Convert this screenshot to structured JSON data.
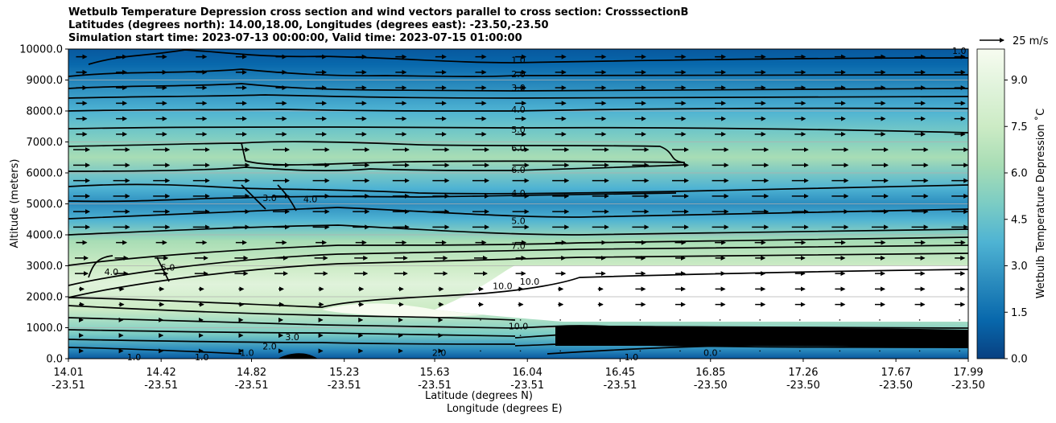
{
  "title": {
    "line1": "Wetbulb Temperature Depression cross section and wind vectors parallel to cross section: CrosssectionB",
    "line2": "Latitudes (degrees north): 14.00,18.00, Longitudes (degrees east): -23.50,-23.50",
    "line3": "Simulation start time: 2023-07-13 00:00:00, Valid time: 2023-07-15 01:00:00"
  },
  "chart_data": {
    "type": "heatmap",
    "subtype": "filled contour cross-section with contour lines and wind vectors",
    "title": "Wetbulb Temperature Depression cross section and wind vectors parallel to cross section: CrosssectionB",
    "ylabel": "Altitude (meters)",
    "xlabel": "Latitude (degrees N)",
    "xlabel2": "Longitude (degrees E)",
    "ylim": [
      0,
      10000
    ],
    "xlim": [
      14.01,
      17.99
    ],
    "grid": "horizontal",
    "y_ticks": [
      "0.0",
      "1000.0",
      "2000.0",
      "3000.0",
      "4000.0",
      "5000.0",
      "6000.0",
      "7000.0",
      "8000.0",
      "9000.0",
      "10000.0"
    ],
    "x_ticks": [
      {
        "lat": "14.01",
        "lon": "-23.51"
      },
      {
        "lat": "14.42",
        "lon": "-23.51"
      },
      {
        "lat": "14.82",
        "lon": "-23.51"
      },
      {
        "lat": "15.23",
        "lon": "-23.51"
      },
      {
        "lat": "15.63",
        "lon": "-23.51"
      },
      {
        "lat": "16.04",
        "lon": "-23.51"
      },
      {
        "lat": "16.45",
        "lon": "-23.51"
      },
      {
        "lat": "16.85",
        "lon": "-23.50"
      },
      {
        "lat": "17.26",
        "lon": "-23.50"
      },
      {
        "lat": "17.67",
        "lon": "-23.50"
      },
      {
        "lat": "17.99",
        "lon": "-23.50"
      }
    ],
    "colorbar": {
      "label": "Wetbulb Temperature Depression $^\\circ$C",
      "label_display": "Wetbulb Temperature Depression ˚C",
      "range": [
        0,
        10
      ],
      "ticks": [
        "0.0",
        "1.5",
        "3.0",
        "4.5",
        "6.0",
        "7.5",
        "9.0"
      ],
      "colors": [
        "#08589e",
        "#0868ac",
        "#2b8cbe",
        "#4eb3d3",
        "#7bccc4",
        "#a8ddb5",
        "#ccebc5",
        "#e0f3db",
        "#f7fcf0"
      ]
    },
    "quiver_key": {
      "label": "25 m/s",
      "speed": 25
    },
    "contour_labels": [
      {
        "text": "1.0",
        "lat": 16.0,
        "alt": 9650
      },
      {
        "text": "2.0",
        "lat": 16.0,
        "alt": 9200
      },
      {
        "text": "3.0",
        "lat": 16.0,
        "alt": 8750
      },
      {
        "text": "4.0",
        "lat": 16.0,
        "alt": 8050
      },
      {
        "text": "5.0",
        "lat": 16.0,
        "alt": 7400
      },
      {
        "text": "6.0",
        "lat": 16.0,
        "alt": 6800
      },
      {
        "text": "6.0",
        "lat": 16.0,
        "alt": 6100
      },
      {
        "text": "4.0",
        "lat": 16.0,
        "alt": 5350
      },
      {
        "text": "5.0",
        "lat": 16.0,
        "alt": 4450
      },
      {
        "text": "7.0",
        "lat": 16.0,
        "alt": 3650
      },
      {
        "text": "10.0",
        "lat": 15.93,
        "alt": 2350
      },
      {
        "text": "10.0",
        "lat": 16.05,
        "alt": 2500
      },
      {
        "text": "3.0",
        "lat": 14.9,
        "alt": 5200
      },
      {
        "text": "4.0",
        "lat": 15.08,
        "alt": 5150
      },
      {
        "text": "5.0",
        "lat": 14.45,
        "alt": 2950
      },
      {
        "text": "4.0",
        "lat": 14.2,
        "alt": 2800
      },
      {
        "text": "1.0",
        "lat": 14.3,
        "alt": 50
      },
      {
        "text": "1.0",
        "lat": 14.6,
        "alt": 50
      },
      {
        "text": "1.0",
        "lat": 14.8,
        "alt": 200
      },
      {
        "text": "2.0",
        "lat": 14.9,
        "alt": 400
      },
      {
        "text": "3.0",
        "lat": 15.0,
        "alt": 700
      },
      {
        "text": "2.0",
        "lat": 15.65,
        "alt": 200
      },
      {
        "text": "10.0",
        "lat": 16.0,
        "alt": 1050
      },
      {
        "text": "1.0",
        "lat": 16.5,
        "alt": 50
      },
      {
        "text": "0.0",
        "lat": 16.85,
        "alt": 200
      },
      {
        "text": "1.0",
        "lat": 17.95,
        "alt": 9950
      }
    ]
  }
}
